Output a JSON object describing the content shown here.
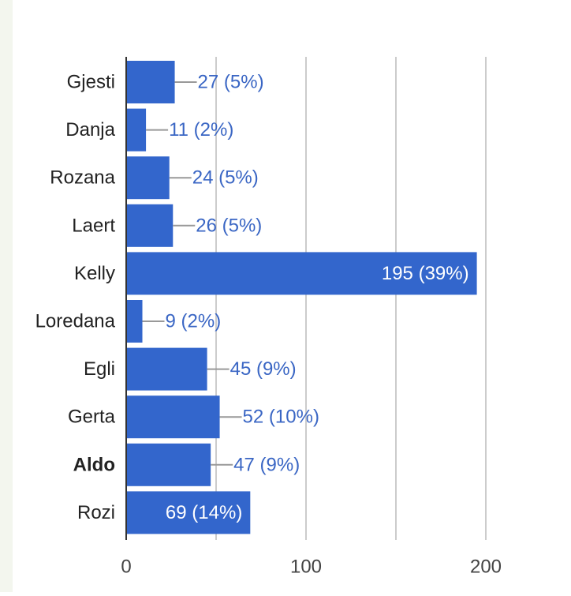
{
  "chart_data": {
    "type": "bar",
    "orientation": "horizontal",
    "categories": [
      "Gjesti",
      "Danja",
      "Rozana",
      "Laert",
      "Kelly",
      "Loredana",
      "Egli",
      "Gerta",
      "Aldo",
      "Rozi"
    ],
    "values": [
      27,
      11,
      24,
      26,
      195,
      9,
      45,
      52,
      47,
      69
    ],
    "data_labels": [
      "27 (5%)",
      "11 (2%)",
      "24 (5%)",
      "26 (5%)",
      "195 (39%)",
      "9 (2%)",
      "45 (9%)",
      "52 (10%)",
      "47 (9%)",
      "69 (14%)"
    ],
    "bold_categories": [
      "Aldo"
    ],
    "xlim": [
      0,
      200
    ],
    "x_ticks": [
      0,
      100,
      200
    ],
    "x_tick_labels": [
      "0",
      "100",
      "200"
    ],
    "grid": true,
    "title": "",
    "xlabel": "",
    "ylabel": "",
    "colors": {
      "bar": "#3366cc",
      "label_outside": "#3a66c4",
      "label_inside": "#ffffff",
      "leader_line": "#999999",
      "grid": "#cccccc",
      "axis": "#333333",
      "category_text": "#222222",
      "tick_text": "#444444"
    }
  }
}
